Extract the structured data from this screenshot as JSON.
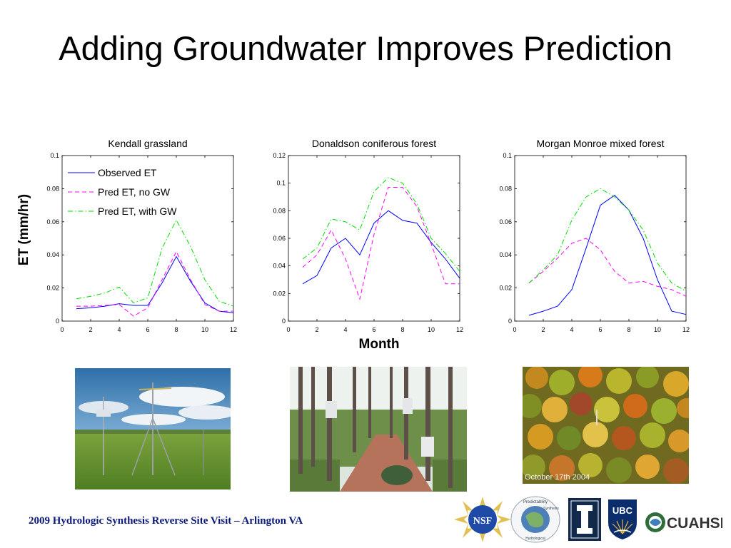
{
  "slide": {
    "title": "Adding Groundwater Improves Prediction",
    "y_axis_label": "ET (mm/hr)",
    "x_axis_label": "Month",
    "footer": "2009 Hydrologic Synthesis Reverse Site Visit – Arlington VA",
    "photo_caption": "October 17th 2004",
    "logos": {
      "nsf": "NSF",
      "ubc": "UBC",
      "cuahsi": "CUAHSI",
      "predictability": "Predictability",
      "synthesis": "Synthesis",
      "hydrological": "Hydrological"
    }
  },
  "colors": {
    "observed": "#0000ff",
    "no_gw": "#ff00ff",
    "with_gw": "#00dd00",
    "footer_text": "#0b1a7a"
  },
  "chart_data": [
    {
      "type": "line",
      "title": "Kendall grassland",
      "xlim": [
        0,
        12
      ],
      "ylim": [
        0,
        0.1
      ],
      "xticks": [
        0,
        2,
        4,
        6,
        8,
        10,
        12
      ],
      "yticks": [
        0,
        0.02,
        0.04,
        0.06,
        0.08,
        0.1
      ],
      "ytick_labels": [
        "0",
        "0.02",
        "0.04",
        "0.06",
        "0.08",
        "0.1"
      ],
      "legend": {
        "location": "top-left"
      },
      "x": [
        1,
        2,
        3,
        4,
        5,
        6,
        7,
        8,
        9,
        10,
        11,
        12
      ],
      "series": [
        {
          "name": "Observed ET",
          "style": "solid",
          "values": [
            0.0075,
            0.008,
            0.009,
            0.0105,
            0.0095,
            0.0095,
            0.023,
            0.039,
            0.024,
            0.011,
            0.006,
            0.005
          ]
        },
        {
          "name": "Pred ET, no GW",
          "style": "dashed",
          "values": [
            0.009,
            0.009,
            0.0095,
            0.01,
            0.003,
            0.008,
            0.025,
            0.042,
            0.025,
            0.01,
            0.006,
            0.006
          ]
        },
        {
          "name": "Pred ET, with GW",
          "style": "dashdot",
          "values": [
            0.0135,
            0.015,
            0.017,
            0.0205,
            0.011,
            0.014,
            0.044,
            0.061,
            0.045,
            0.025,
            0.012,
            0.009
          ]
        }
      ]
    },
    {
      "type": "line",
      "title": "Donaldson coniferous forest",
      "xlim": [
        0,
        12
      ],
      "ylim": [
        0,
        0.12
      ],
      "xticks": [
        0,
        2,
        4,
        6,
        8,
        10,
        12
      ],
      "yticks": [
        0,
        0.02,
        0.04,
        0.06,
        0.08,
        0.1,
        0.12
      ],
      "ytick_labels": [
        "0",
        "0.02",
        "0.04",
        "0.06",
        "0.08",
        "0.1",
        "0.12"
      ],
      "x": [
        1,
        2,
        3,
        4,
        5,
        6,
        7,
        8,
        9,
        10,
        11,
        12
      ],
      "series": [
        {
          "name": "Observed ET",
          "style": "solid",
          "values": [
            0.027,
            0.033,
            0.053,
            0.06,
            0.048,
            0.071,
            0.08,
            0.073,
            0.071,
            0.057,
            0.045,
            0.031
          ]
        },
        {
          "name": "Pred ET, no GW",
          "style": "dashed",
          "values": [
            0.039,
            0.048,
            0.066,
            0.045,
            0.016,
            0.063,
            0.097,
            0.097,
            0.083,
            0.056,
            0.027,
            0.027
          ]
        },
        {
          "name": "Pred ET, with GW",
          "style": "dashdot",
          "values": [
            0.045,
            0.053,
            0.074,
            0.072,
            0.066,
            0.094,
            0.104,
            0.1,
            0.085,
            0.06,
            0.049,
            0.036
          ]
        }
      ]
    },
    {
      "type": "line",
      "title": "Morgan Monroe mixed forest",
      "xlim": [
        0,
        12
      ],
      "ylim": [
        0,
        0.1
      ],
      "xticks": [
        0,
        2,
        4,
        6,
        8,
        10,
        12
      ],
      "yticks": [
        0,
        0.02,
        0.04,
        0.06,
        0.08,
        0.1
      ],
      "ytick_labels": [
        "0",
        "0.02",
        "0.04",
        "0.06",
        "0.08",
        "0.1"
      ],
      "x": [
        1,
        2,
        3,
        4,
        5,
        6,
        7,
        8,
        9,
        10,
        11,
        12
      ],
      "series": [
        {
          "name": "Observed ET",
          "style": "solid",
          "values": [
            0.0035,
            0.006,
            0.009,
            0.019,
            0.044,
            0.07,
            0.076,
            0.067,
            0.05,
            0.025,
            0.006,
            0.004
          ]
        },
        {
          "name": "Pred ET, no GW",
          "style": "dashed",
          "values": [
            0.023,
            0.03,
            0.038,
            0.047,
            0.05,
            0.043,
            0.03,
            0.023,
            0.024,
            0.021,
            0.019,
            0.015
          ]
        },
        {
          "name": "Pred ET, with GW",
          "style": "dashdot",
          "values": [
            0.023,
            0.031,
            0.04,
            0.061,
            0.075,
            0.08,
            0.075,
            0.067,
            0.055,
            0.035,
            0.023,
            0.018
          ]
        }
      ]
    }
  ]
}
